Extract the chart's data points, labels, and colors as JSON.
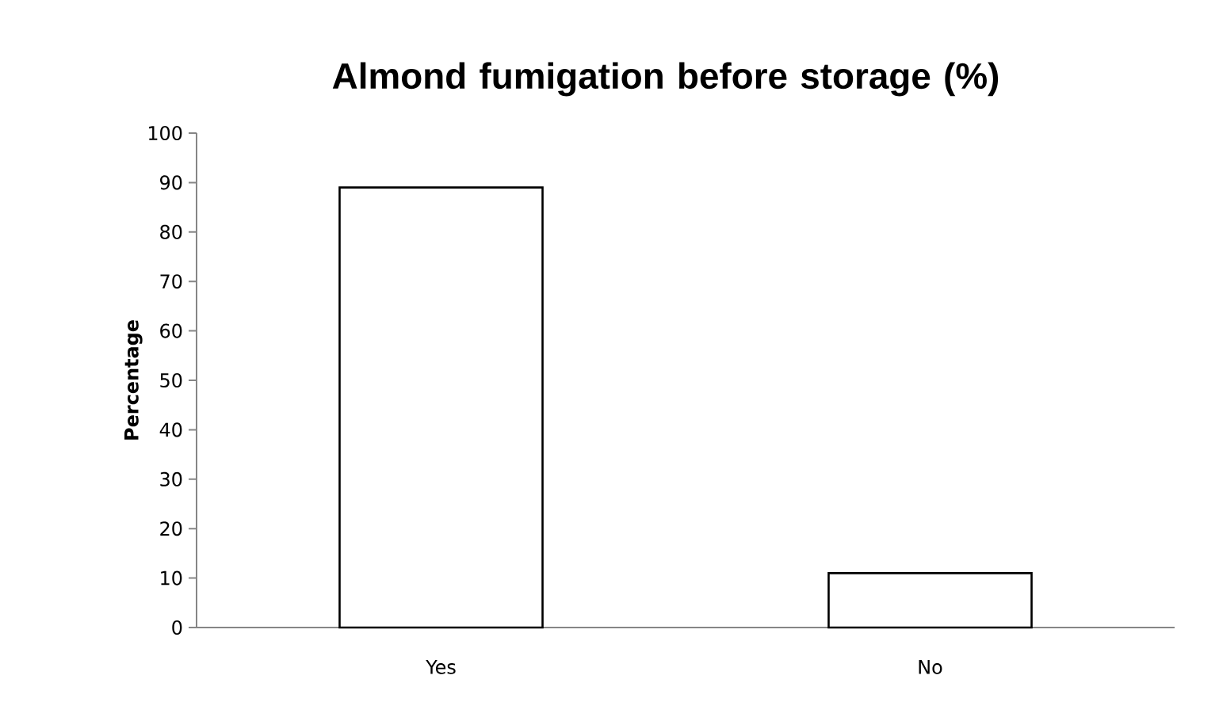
{
  "chart_data": {
    "type": "bar",
    "title": "Almond fumigation before storage (%)",
    "ylabel": "Percentage",
    "categories": [
      "Yes",
      "No"
    ],
    "values": [
      89,
      11
    ],
    "color": "#ffffff",
    "ylim": [
      0,
      100
    ],
    "yticks": [
      0,
      10,
      20,
      30,
      40,
      50,
      60,
      70,
      80,
      90,
      100
    ],
    "grid": false
  }
}
